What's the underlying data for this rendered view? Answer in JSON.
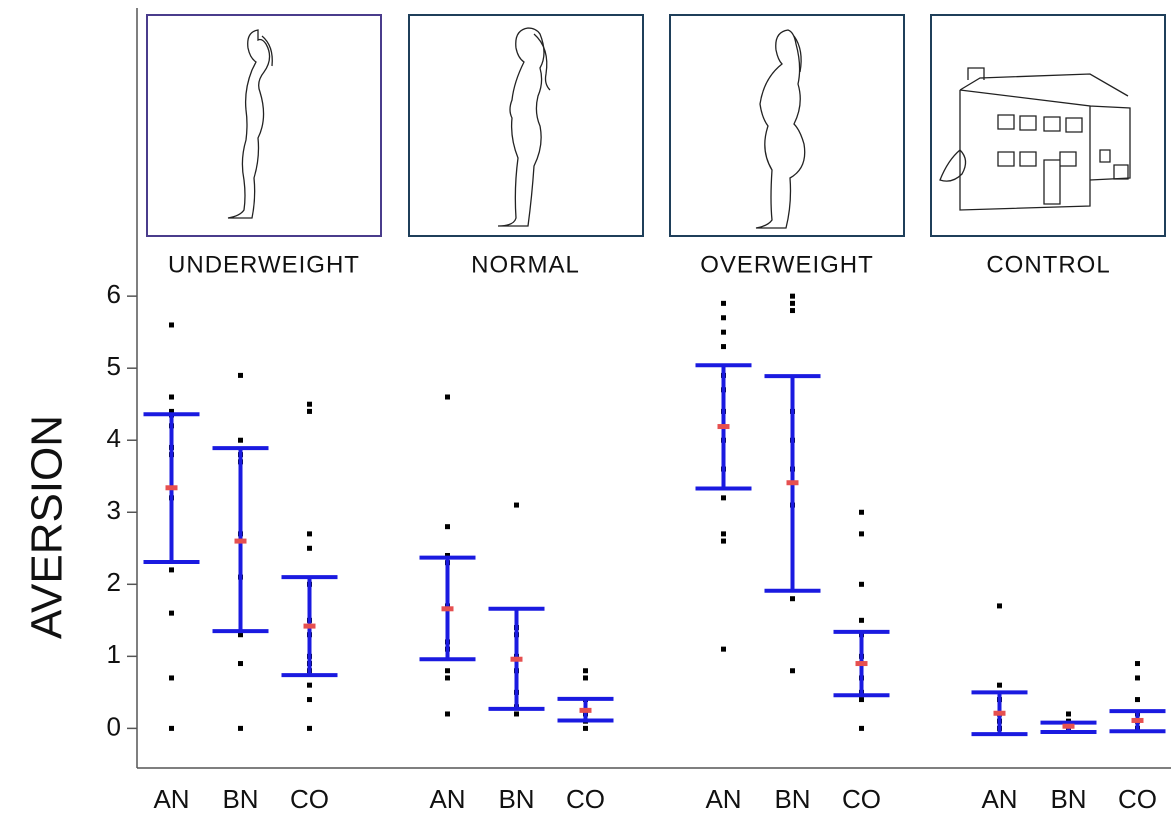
{
  "chart_data": {
    "type": "dotplot",
    "y_label": "AVERSION",
    "ylim": [
      -0.55,
      10.0
    ],
    "yticks": [
      0,
      1,
      2,
      3,
      4,
      5,
      6
    ],
    "mean_color": "#e65050",
    "bar_color": "#1a1ae0",
    "point_color": "#000000",
    "groups": [
      {
        "name": "UNDERWEIGHT",
        "subgroups": [
          {
            "name": "AN",
            "mean": 3.34,
            "lower": 2.31,
            "upper": 4.36,
            "points": [
              5.6,
              4.6,
              4.4,
              4.35,
              4.2,
              3.9,
              3.8,
              3.2,
              2.2,
              1.6,
              0.7,
              0
            ]
          },
          {
            "name": "BN",
            "mean": 2.6,
            "lower": 1.35,
            "upper": 3.89,
            "points": [
              4.9,
              4.0,
              3.8,
              3.7,
              2.7,
              2.1,
              1.3,
              0.9,
              0
            ]
          },
          {
            "name": "CO",
            "mean": 1.42,
            "lower": 0.74,
            "upper": 2.1,
            "points": [
              4.5,
              4.4,
              2.7,
              2.5,
              2.0,
              1.5,
              1.3,
              1.0,
              0.9,
              0.8,
              0.6,
              0.4,
              0
            ]
          }
        ]
      },
      {
        "name": "NORMAL",
        "subgroups": [
          {
            "name": "AN",
            "mean": 1.66,
            "lower": 0.96,
            "upper": 2.37,
            "points": [
              4.6,
              2.8,
              2.4,
              2.3,
              1.7,
              1.2,
              1.1,
              0.8,
              0.7,
              0.2
            ]
          },
          {
            "name": "BN",
            "mean": 0.96,
            "lower": 0.27,
            "upper": 1.66,
            "points": [
              3.1,
              1.4,
              1.3,
              1.0,
              0.8,
              0.5,
              0.3,
              0.2
            ]
          },
          {
            "name": "CO",
            "mean": 0.25,
            "lower": 0.11,
            "upper": 0.41,
            "points": [
              0.8,
              0.7,
              0.4,
              0.2,
              0.1,
              0
            ]
          }
        ]
      },
      {
        "name": "OVERWEIGHT",
        "subgroups": [
          {
            "name": "AN",
            "mean": 4.19,
            "lower": 3.33,
            "upper": 5.04,
            "points": [
              5.9,
              5.7,
              5.5,
              5.3,
              4.9,
              4.7,
              4.4,
              4.0,
              3.6,
              3.2,
              2.7,
              2.6,
              1.1
            ]
          },
          {
            "name": "BN",
            "mean": 3.41,
            "lower": 1.91,
            "upper": 4.89,
            "points": [
              6.0,
              5.9,
              5.8,
              4.4,
              4.0,
              3.6,
              3.1,
              1.8,
              0.8
            ]
          },
          {
            "name": "CO",
            "mean": 0.9,
            "lower": 0.46,
            "upper": 1.34,
            "points": [
              3.0,
              2.7,
              2.0,
              1.5,
              1.3,
              1.0,
              0.9,
              0.7,
              0.5,
              0.4,
              0
            ]
          }
        ]
      },
      {
        "name": "CONTROL",
        "subgroups": [
          {
            "name": "AN",
            "mean": 0.21,
            "lower": -0.08,
            "upper": 0.5,
            "points": [
              1.7,
              0.6,
              0.4,
              0.2,
              0.1,
              0
            ]
          },
          {
            "name": "BN",
            "mean": 0.03,
            "lower": -0.05,
            "upper": 0.08,
            "points": [
              0.2,
              0.1,
              0
            ]
          },
          {
            "name": "CO",
            "mean": 0.11,
            "lower": -0.04,
            "upper": 0.24,
            "points": [
              0.9,
              0.7,
              0.4,
              0.2,
              0.1,
              0
            ]
          }
        ]
      }
    ]
  }
}
